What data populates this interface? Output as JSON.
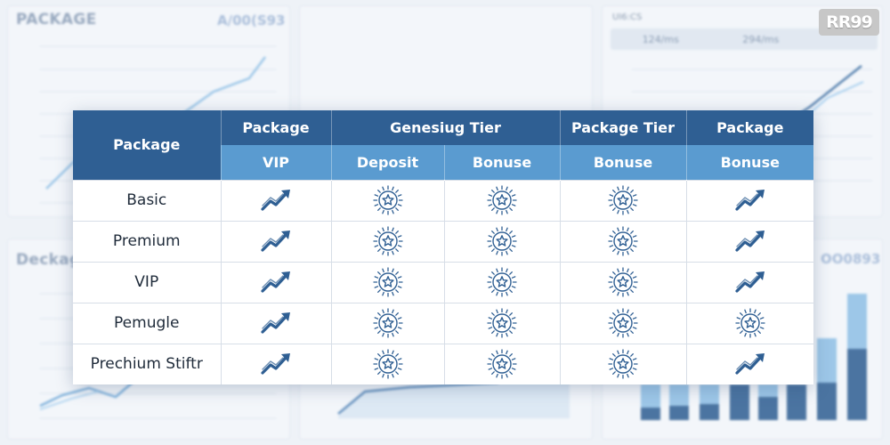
{
  "background": {
    "top_left_title": "PACKAGE",
    "top_left_code": "A/00(S93",
    "top_right_label": "UI6:CS",
    "top_right_badges": [
      "124/ms",
      "294/ms"
    ],
    "bottom_left_title": "Deckage",
    "bottom_right_code": "OO0893"
  },
  "logo": {
    "text": "RR99"
  },
  "table": {
    "corner_header": "Package",
    "group_headers": [
      "Package",
      "Genesiug Tier",
      "Package Tier",
      "Package"
    ],
    "sub_headers": [
      "VIP",
      "Deposit",
      "Bonuse",
      "Bonuse",
      "Bonuse"
    ],
    "rows": [
      {
        "name": "Basic",
        "cells": [
          "trend-arrow",
          "star-badge",
          "star-badge",
          "star-badge",
          "trend-arrow"
        ]
      },
      {
        "name": "Premium",
        "cells": [
          "trend-arrow",
          "star-badge",
          "star-badge",
          "star-badge",
          "trend-arrow"
        ]
      },
      {
        "name": "VIP",
        "cells": [
          "trend-arrow",
          "star-badge",
          "star-badge",
          "star-badge",
          "trend-arrow"
        ]
      },
      {
        "name": "Pemugle",
        "cells": [
          "trend-arrow",
          "star-badge",
          "star-badge",
          "star-badge",
          "star-badge"
        ]
      },
      {
        "name": "Prechium Stiftr",
        "cells": [
          "trend-arrow",
          "star-badge",
          "star-badge",
          "star-badge",
          "trend-arrow"
        ]
      }
    ]
  },
  "colors": {
    "header_dark": "#2f5f93",
    "header_light": "#5a9bd0",
    "icon": "#2f5f93"
  }
}
